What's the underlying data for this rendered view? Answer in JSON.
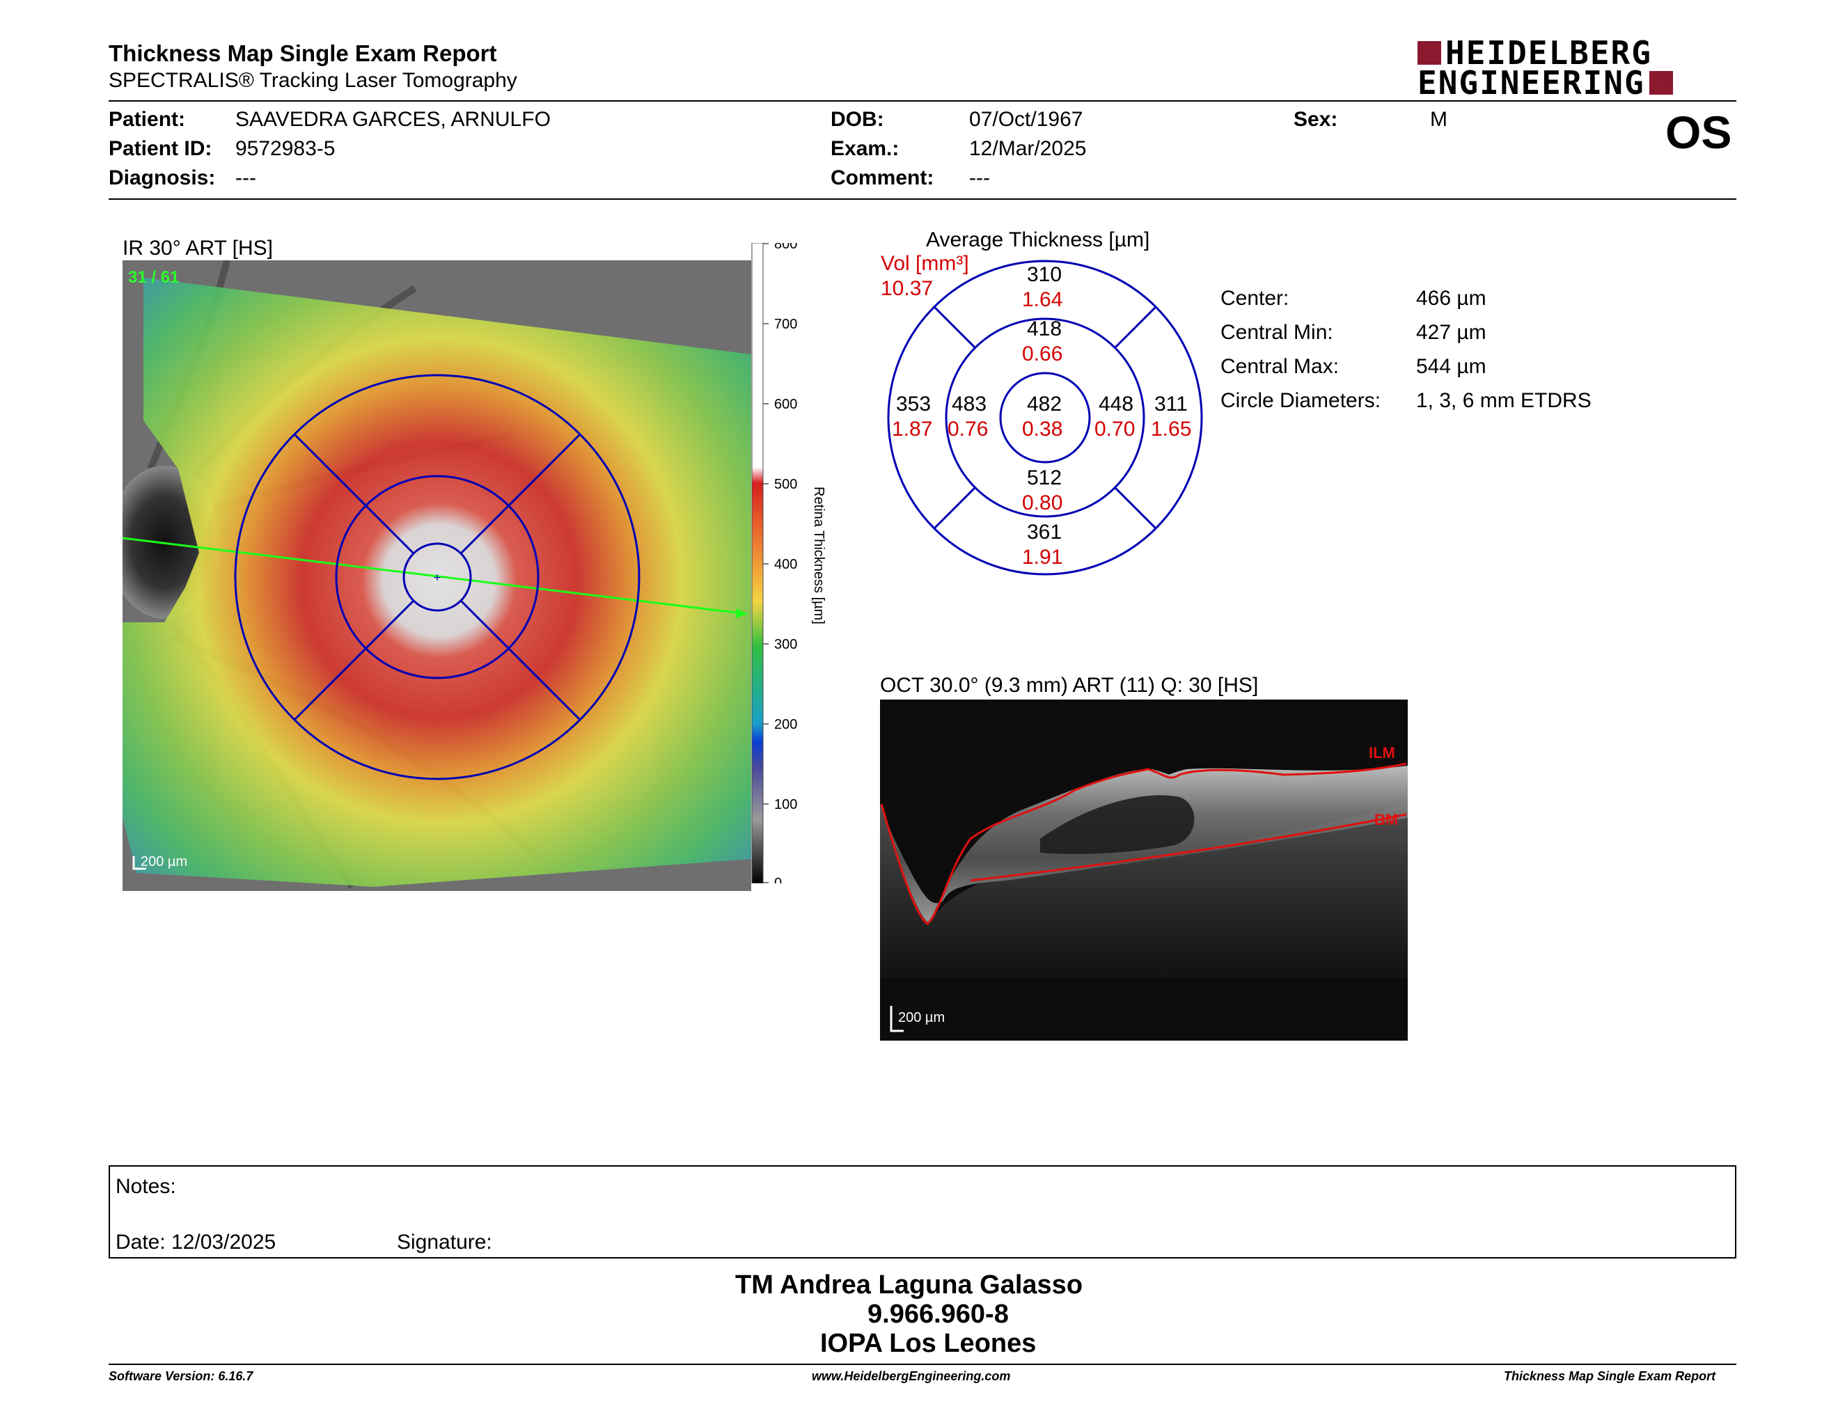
{
  "header": {
    "title": "Thickness Map Single Exam Report",
    "subtitle": "SPECTRALIS® Tracking Laser Tomography",
    "logo_line1": "HEIDELBERG",
    "logo_line2": "ENGINEERING",
    "eye": "OS"
  },
  "patient": {
    "patient_label": "Patient:",
    "patient_value": "SAAVEDRA GARCES, ARNULFO",
    "id_label": "Patient ID:",
    "id_value": "9572983-5",
    "diagnosis_label": "Diagnosis:",
    "diagnosis_value": "---",
    "dob_label": "DOB:",
    "dob_value": "07/Oct/1967",
    "exam_label": "Exam.:",
    "exam_value": "12/Mar/2025",
    "comment_label": "Comment:",
    "comment_value": "---",
    "sex_label": "Sex:",
    "sex_value": "M"
  },
  "ir_image": {
    "label": "IR 30° ART [HS]",
    "overlay_count": "31 / 61",
    "scale": "200 µm"
  },
  "colorbar": {
    "ticks": [
      "800",
      "700",
      "600",
      "500",
      "400",
      "300",
      "200",
      "100",
      "0"
    ],
    "label": "Retina  Thickness [µm]"
  },
  "etdrs": {
    "title": "Average Thickness [µm]",
    "vol_label": "Vol [mm³]",
    "vol_total": "10.37",
    "outer_top": {
      "thickness": "310",
      "volume": "1.64"
    },
    "inner_top": {
      "thickness": "418",
      "volume": "0.66"
    },
    "outer_left": {
      "thickness": "353",
      "volume": "1.87"
    },
    "inner_left": {
      "thickness": "483",
      "volume": "0.76"
    },
    "center": {
      "thickness": "482",
      "volume": "0.38"
    },
    "inner_right": {
      "thickness": "448",
      "volume": "0.70"
    },
    "outer_right": {
      "thickness": "311",
      "volume": "1.65"
    },
    "inner_bottom": {
      "thickness": "512",
      "volume": "0.80"
    },
    "outer_bottom": {
      "thickness": "361",
      "volume": "1.91"
    }
  },
  "stats": {
    "center_label": "Center:",
    "center_value": "466 µm",
    "cmin_label": "Central Min:",
    "cmin_value": "427 µm",
    "cmax_label": "Central Max:",
    "cmax_value": "544 µm",
    "diam_label": "Circle Diameters:",
    "diam_value": "1, 3, 6 mm ETDRS"
  },
  "oct_image": {
    "label": "OCT 30.0° (9.3 mm) ART (11) Q: 30 [HS]",
    "ilm": "ILM",
    "bm": "BM",
    "scale": "200 µm"
  },
  "notes": {
    "notes_label": "Notes:",
    "date_label": "Date: 12/03/2025",
    "signature_label": "Signature:"
  },
  "signatory": {
    "name": "TM Andrea Laguna Galasso",
    "id": "9.966.960-8",
    "institution": "IOPA Los Leones"
  },
  "footer": {
    "software": "Software Version: 6.16.7",
    "website": "www.HeidelbergEngineering.com",
    "report": "Thickness Map Single Exam Report"
  },
  "colors": {
    "accent": "#8b1a2e",
    "grid_blue": "#0000b4",
    "volume_red": "#d40000"
  }
}
